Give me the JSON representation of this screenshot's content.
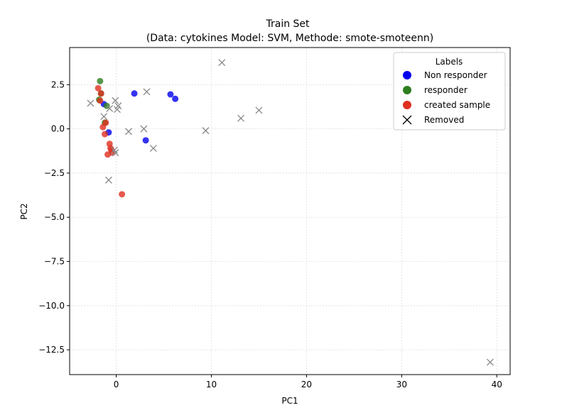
{
  "chart_data": {
    "type": "scatter",
    "title": "Train Set",
    "subtitle": "(Data: cytokines Model: SVM, Methode: smote-smoteenn)",
    "xlabel": "PC1",
    "ylabel": "PC2",
    "xlim": [
      -4.9,
      41.4
    ],
    "ylim": [
      -13.9,
      4.6
    ],
    "xticks": [
      0,
      10,
      20,
      30,
      40
    ],
    "yticks": [
      2.5,
      0.0,
      -2.5,
      -5.0,
      -7.5,
      -10.0,
      -12.5
    ],
    "xtick_labels": [
      "0",
      "10",
      "20",
      "30",
      "40"
    ],
    "ytick_labels": [
      "2.5",
      "0.0",
      "−2.5",
      "−5.0",
      "−7.5",
      "−10.0",
      "−12.5"
    ],
    "grid": true,
    "legend": {
      "title": "Labels",
      "position": "top-right",
      "entries": [
        "Non responder",
        "responder",
        "created sample",
        "Removed"
      ]
    },
    "series": [
      {
        "name": "Non responder",
        "color": "#0000ee",
        "marker": "circle",
        "points": [
          [
            -1.3,
            1.4
          ],
          [
            -0.8,
            -0.2
          ],
          [
            1.9,
            2.0
          ],
          [
            5.7,
            1.95
          ],
          [
            6.2,
            1.7
          ],
          [
            3.1,
            -0.65
          ]
        ]
      },
      {
        "name": "responder",
        "color": "#2e7d1e",
        "marker": "circle",
        "points": [
          [
            -1.7,
            2.7
          ],
          [
            -1.6,
            2.0
          ],
          [
            -1.8,
            1.65
          ],
          [
            -1.0,
            1.3
          ],
          [
            -1.2,
            0.35
          ]
        ]
      },
      {
        "name": "created sample",
        "color": "#e03020",
        "marker": "circle",
        "points": [
          [
            -1.9,
            2.3
          ],
          [
            -1.6,
            2.0
          ],
          [
            -1.7,
            1.6
          ],
          [
            -1.4,
            0.1
          ],
          [
            -1.1,
            0.35
          ],
          [
            -1.2,
            -0.3
          ],
          [
            -0.7,
            -0.85
          ],
          [
            -0.6,
            -1.1
          ],
          [
            -0.5,
            -1.2
          ],
          [
            -0.9,
            -1.45
          ],
          [
            -0.4,
            -1.35
          ],
          [
            0.6,
            -3.7
          ]
        ]
      },
      {
        "name": "Removed",
        "color": "#888888",
        "marker": "x",
        "points": [
          [
            -2.7,
            1.45
          ],
          [
            -0.7,
            1.15
          ],
          [
            -1.3,
            0.7
          ],
          [
            -0.1,
            1.6
          ],
          [
            0.1,
            1.1
          ],
          [
            0.2,
            1.3
          ],
          [
            3.2,
            2.1
          ],
          [
            2.9,
            0.0
          ],
          [
            1.3,
            -0.15
          ],
          [
            3.9,
            -1.1
          ],
          [
            -0.2,
            -1.2
          ],
          [
            -0.1,
            -1.35
          ],
          [
            -0.8,
            -2.9
          ],
          [
            9.4,
            -0.1
          ],
          [
            11.1,
            3.75
          ],
          [
            13.1,
            0.6
          ],
          [
            15.0,
            1.05
          ],
          [
            39.3,
            -13.2
          ]
        ]
      }
    ]
  }
}
